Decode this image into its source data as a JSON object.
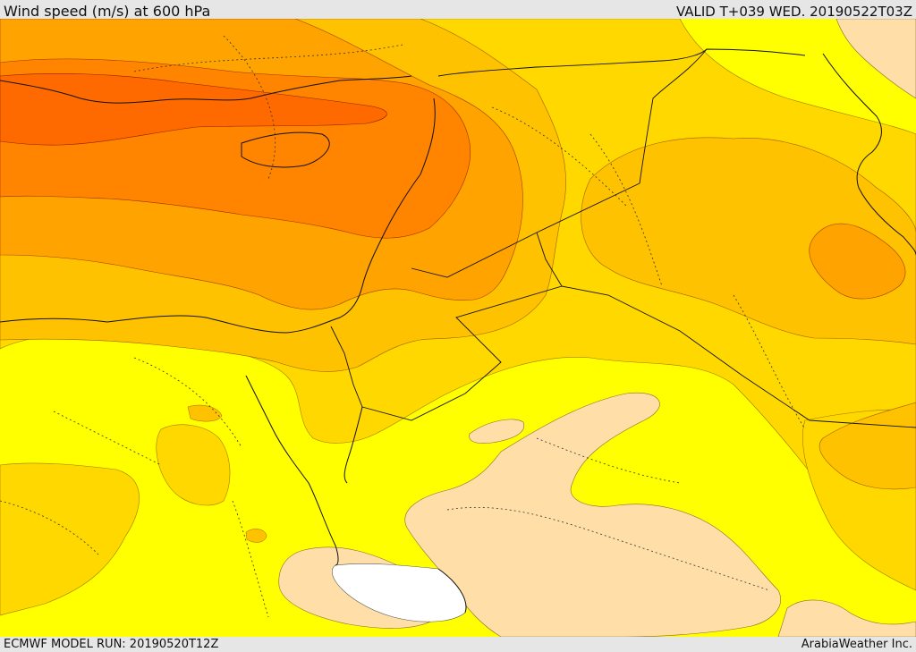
{
  "header": {
    "title": "Wind speed (m/s) at 600 hPa",
    "valid_time": "VALID T+039 WED. 20190522T03Z"
  },
  "footer": {
    "model_run": "ECMWF MODEL RUN: 20190520T12Z",
    "credit": "ArabiaWeather Inc."
  },
  "colors": {
    "band_white": "#ffffff",
    "band_peach": "#ffdea8",
    "band_yellow": "#ffff00",
    "band_gold": "#ffd800",
    "band_amber": "#ffc200",
    "band_orange_light": "#ffa300",
    "band_orange": "#ff8400",
    "band_orange_dark": "#ff6a00"
  }
}
